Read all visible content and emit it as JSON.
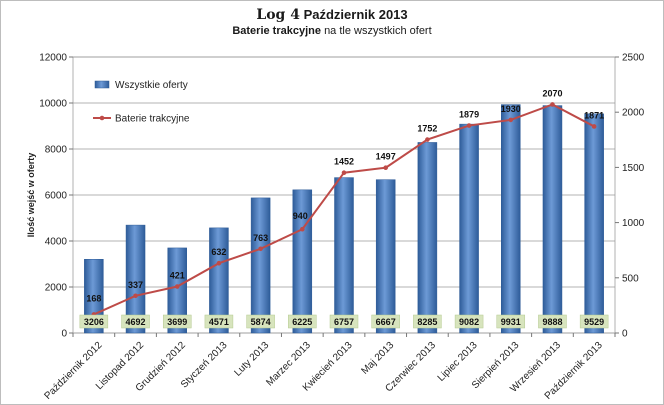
{
  "chart_data": {
    "type": "bar",
    "title_main": "Log 4",
    "title_rest": "Październik 2013",
    "subtitle_bold": "Baterie trakcyjne",
    "subtitle_rest": "na tle wszystkich ofert",
    "ylabel": "Ilość wejść w oferty",
    "y_ticks": [
      "0",
      "2000",
      "4000",
      "6000",
      "8000",
      "10000",
      "12000"
    ],
    "y2_ticks": [
      "0",
      "500",
      "1000",
      "1500",
      "2000",
      "2500"
    ],
    "ylim": [
      0,
      12000
    ],
    "y2lim": [
      0,
      2500
    ],
    "grid": true,
    "legend_position": "top-left",
    "categories": [
      "Październik 2012",
      "Listopad 2012",
      "Grudzień 2012",
      "Styczeń 2013",
      "Luty 2013",
      "Marzec 2013",
      "Kwiecień 2013",
      "Maj 2013",
      "Czerwiec 2013",
      "Lipiec 2013",
      "Sierpień 2013",
      "Wrzesień 2013",
      "Październik 2013"
    ],
    "series": [
      {
        "name": "Wszystkie oferty",
        "type": "bar",
        "axis": "left",
        "color": "#4a7ebb",
        "values": [
          3206,
          4692,
          3699,
          4571,
          5874,
          6225,
          6757,
          6667,
          8285,
          9082,
          9931,
          9888,
          9529
        ],
        "labels": [
          "3206",
          "4692",
          "3699",
          "4571",
          "5874",
          "6225",
          "6757",
          "6667",
          "8285",
          "9082",
          "9931",
          "9888",
          "9529"
        ]
      },
      {
        "name": "Baterie trakcyjne",
        "type": "line",
        "axis": "right",
        "color": "#be4b48",
        "values": [
          168,
          337,
          421,
          632,
          763,
          940,
          1452,
          1497,
          1752,
          1879,
          1930,
          2070,
          1871
        ],
        "labels": [
          "168",
          "337",
          "421",
          "632",
          "763",
          "940",
          "1452",
          "1497",
          "1752",
          "1879",
          "1930",
          "2070",
          "1871"
        ]
      }
    ]
  }
}
